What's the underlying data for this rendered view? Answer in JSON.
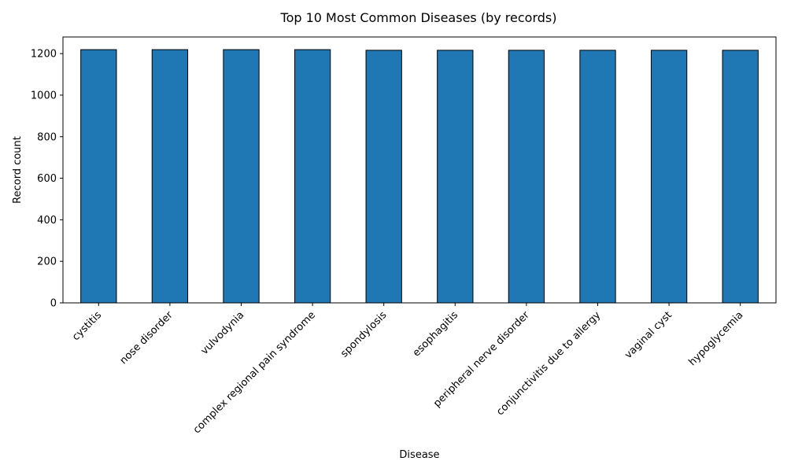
{
  "chart_data": {
    "type": "bar",
    "title": "Top 10 Most Common Diseases (by records)",
    "xlabel": "Disease",
    "ylabel": "Record count",
    "categories": [
      "cystitis",
      "nose disorder",
      "vulvodynia",
      "complex regional pain syndrome",
      "spondylosis",
      "esophagitis",
      "peripheral nerve disorder",
      "conjunctivitis due to allergy",
      "vaginal cyst",
      "hypoglycemia"
    ],
    "values": [
      1219,
      1219,
      1219,
      1219,
      1216,
      1216,
      1216,
      1216,
      1216,
      1216
    ],
    "ylim": [
      0,
      1280
    ],
    "yticks": [
      0,
      200,
      400,
      600,
      800,
      1000,
      1200
    ],
    "grid": false,
    "bar_color": "#1f77b4",
    "edge_color": "#000000"
  }
}
